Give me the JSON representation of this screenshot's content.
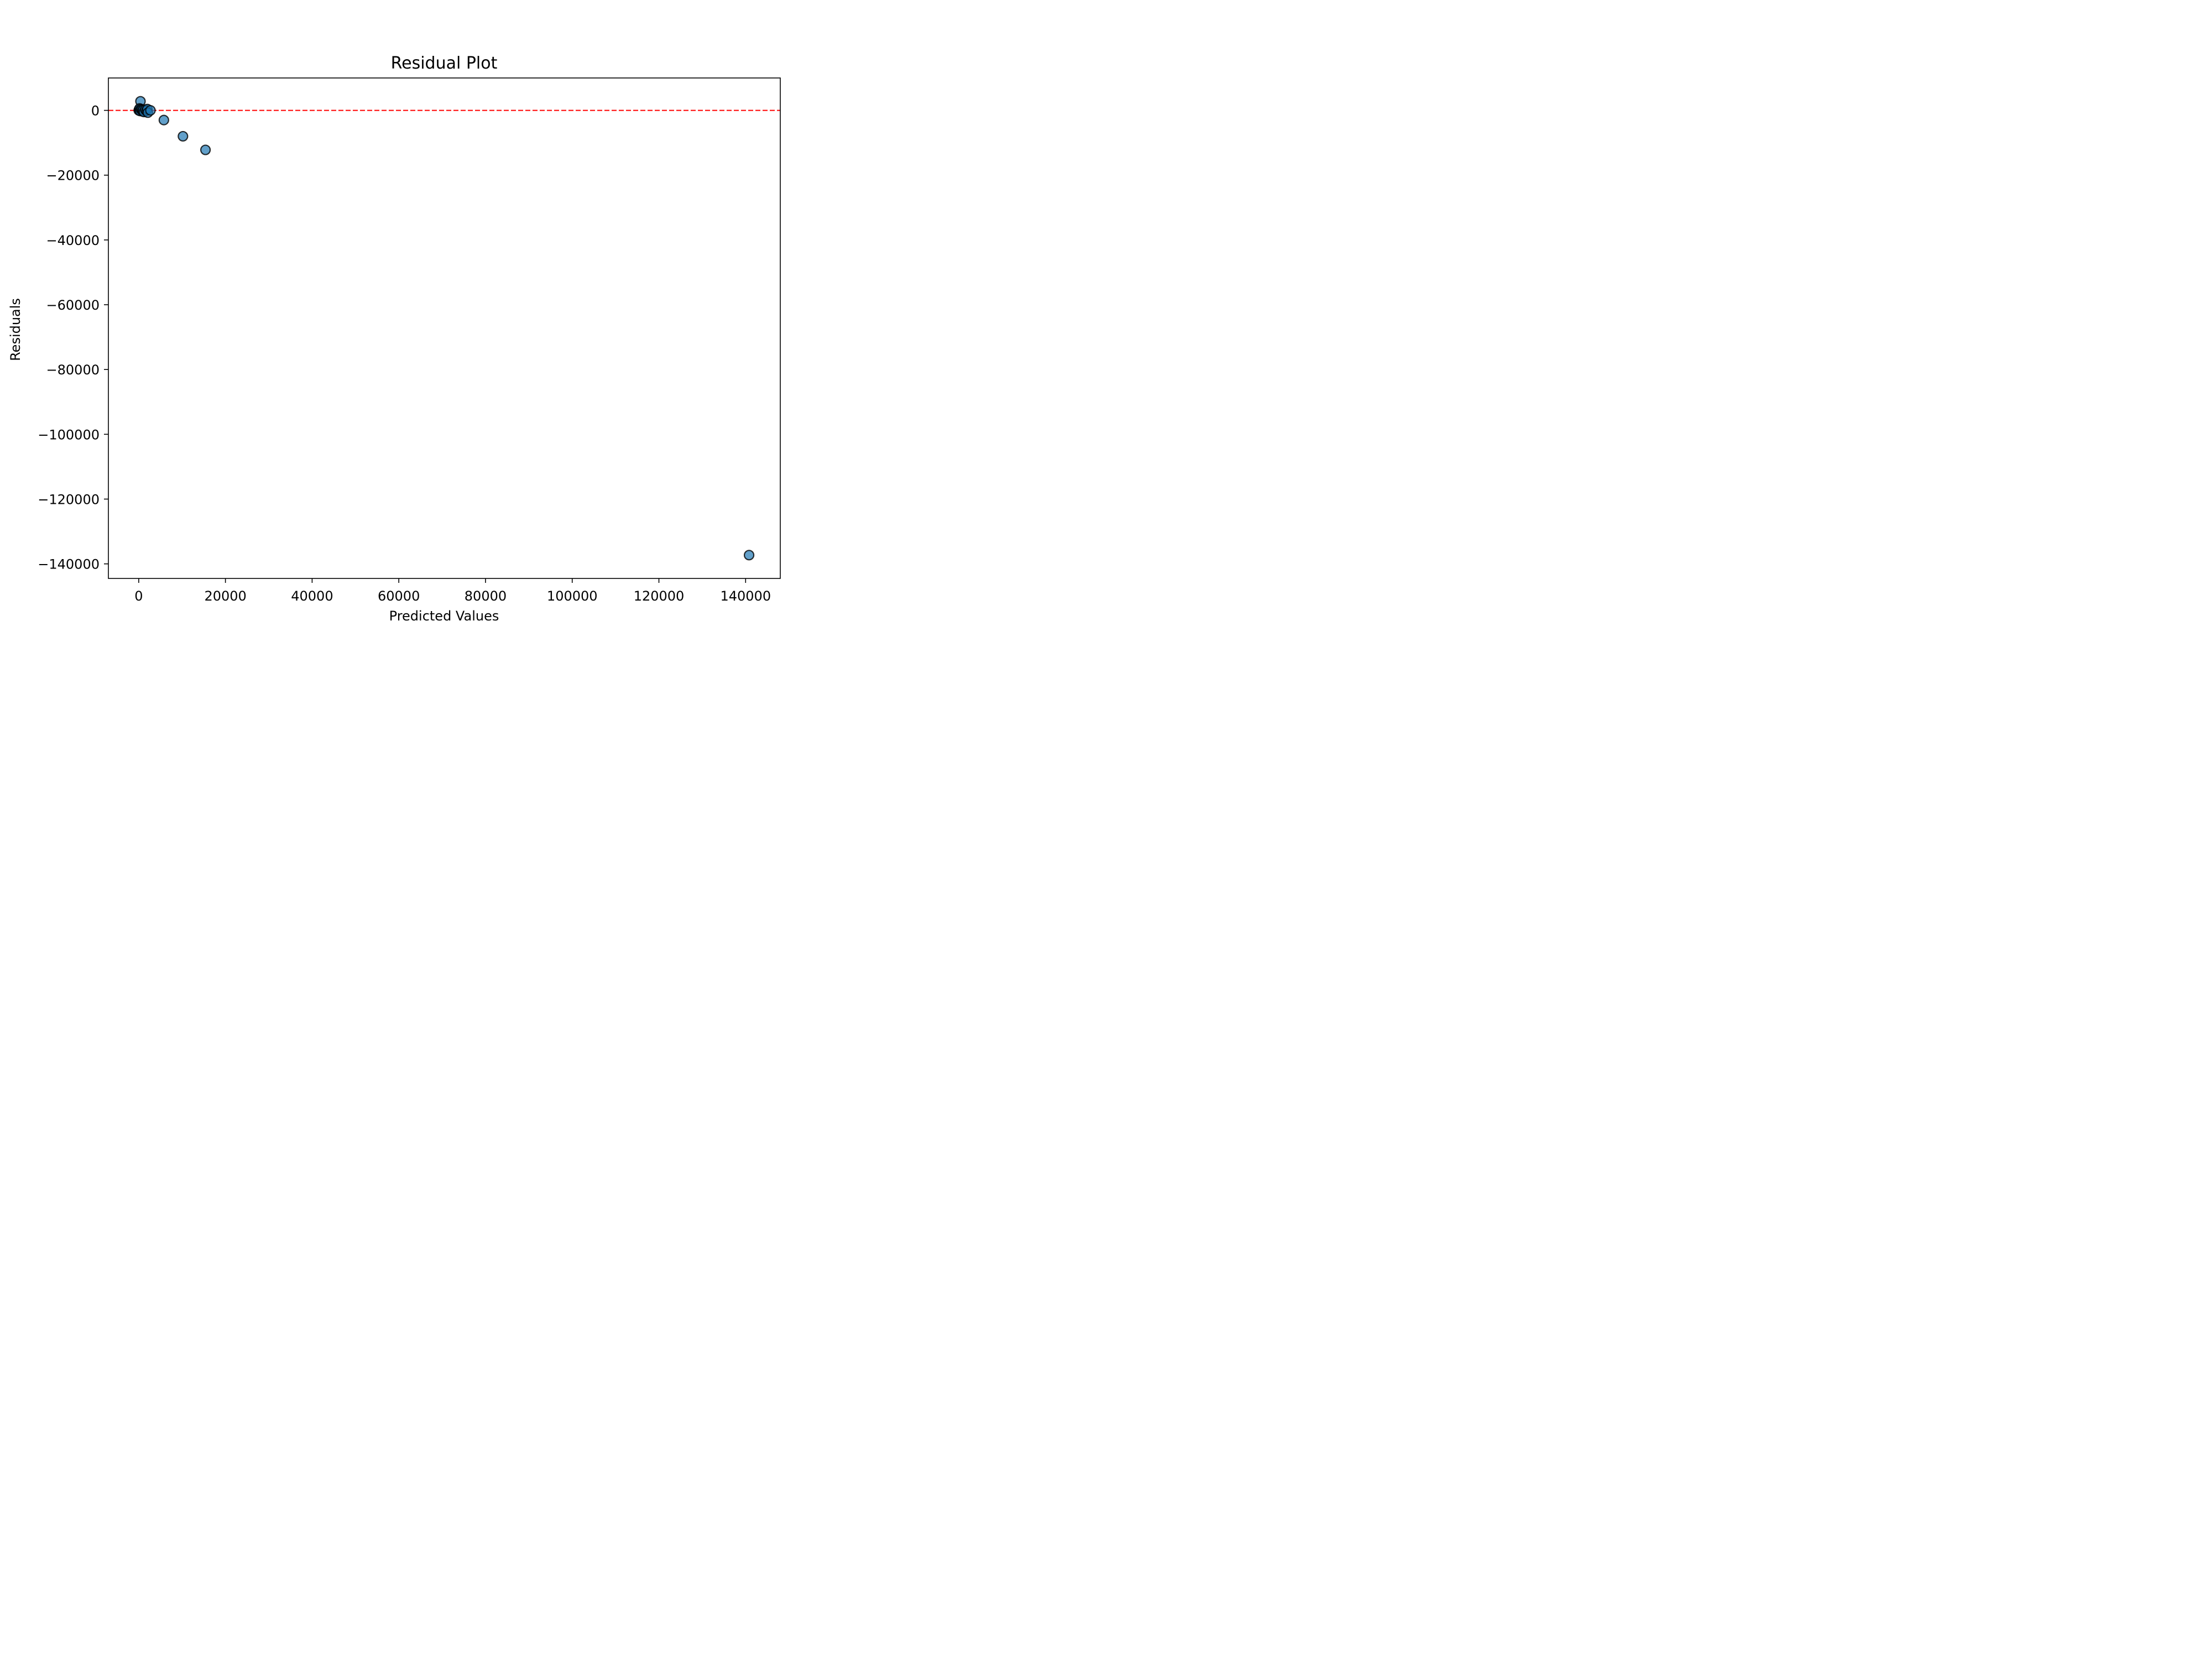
{
  "chart_data": {
    "type": "scatter",
    "title": "Residual Plot",
    "xlabel": "Predicted Values",
    "ylabel": "Residuals",
    "xlim": [
      -7000,
      148000
    ],
    "ylim": [
      -144500,
      10000
    ],
    "x_ticks": [
      {
        "value": 0,
        "label": "0"
      },
      {
        "value": 20000,
        "label": "20000"
      },
      {
        "value": 40000,
        "label": "40000"
      },
      {
        "value": 60000,
        "label": "60000"
      },
      {
        "value": 80000,
        "label": "80000"
      },
      {
        "value": 100000,
        "label": "100000"
      },
      {
        "value": 120000,
        "label": "120000"
      },
      {
        "value": 140000,
        "label": "140000"
      }
    ],
    "y_ticks": [
      {
        "value": 0,
        "label": "0"
      },
      {
        "value": -20000,
        "label": "−20000"
      },
      {
        "value": -40000,
        "label": "−40000"
      },
      {
        "value": -60000,
        "label": "−60000"
      },
      {
        "value": -80000,
        "label": "−80000"
      },
      {
        "value": -100000,
        "label": "−100000"
      },
      {
        "value": -120000,
        "label": "−120000"
      },
      {
        "value": -140000,
        "label": "−140000"
      }
    ],
    "grid": false,
    "reference_line": {
      "y": 0,
      "style": "dashed",
      "color": "#ff0000"
    },
    "marker_color": "#1f77b4",
    "marker_edge_color": "#000000",
    "points": [
      {
        "x": 400,
        "y": 2800
      },
      {
        "x": 0,
        "y": 0
      },
      {
        "x": 100,
        "y": 300
      },
      {
        "x": 200,
        "y": 600
      },
      {
        "x": 300,
        "y": -200
      },
      {
        "x": 500,
        "y": 400
      },
      {
        "x": 700,
        "y": 200
      },
      {
        "x": 900,
        "y": -300
      },
      {
        "x": 1000,
        "y": 100
      },
      {
        "x": 1200,
        "y": -500
      },
      {
        "x": 1500,
        "y": 200
      },
      {
        "x": 1800,
        "y": -100
      },
      {
        "x": 2000,
        "y": 400
      },
      {
        "x": 2100,
        "y": -700
      },
      {
        "x": 2700,
        "y": 0
      },
      {
        "x": 5800,
        "y": -3000
      },
      {
        "x": 10200,
        "y": -8000
      },
      {
        "x": 15400,
        "y": -12200
      },
      {
        "x": 140800,
        "y": -137300
      }
    ]
  }
}
